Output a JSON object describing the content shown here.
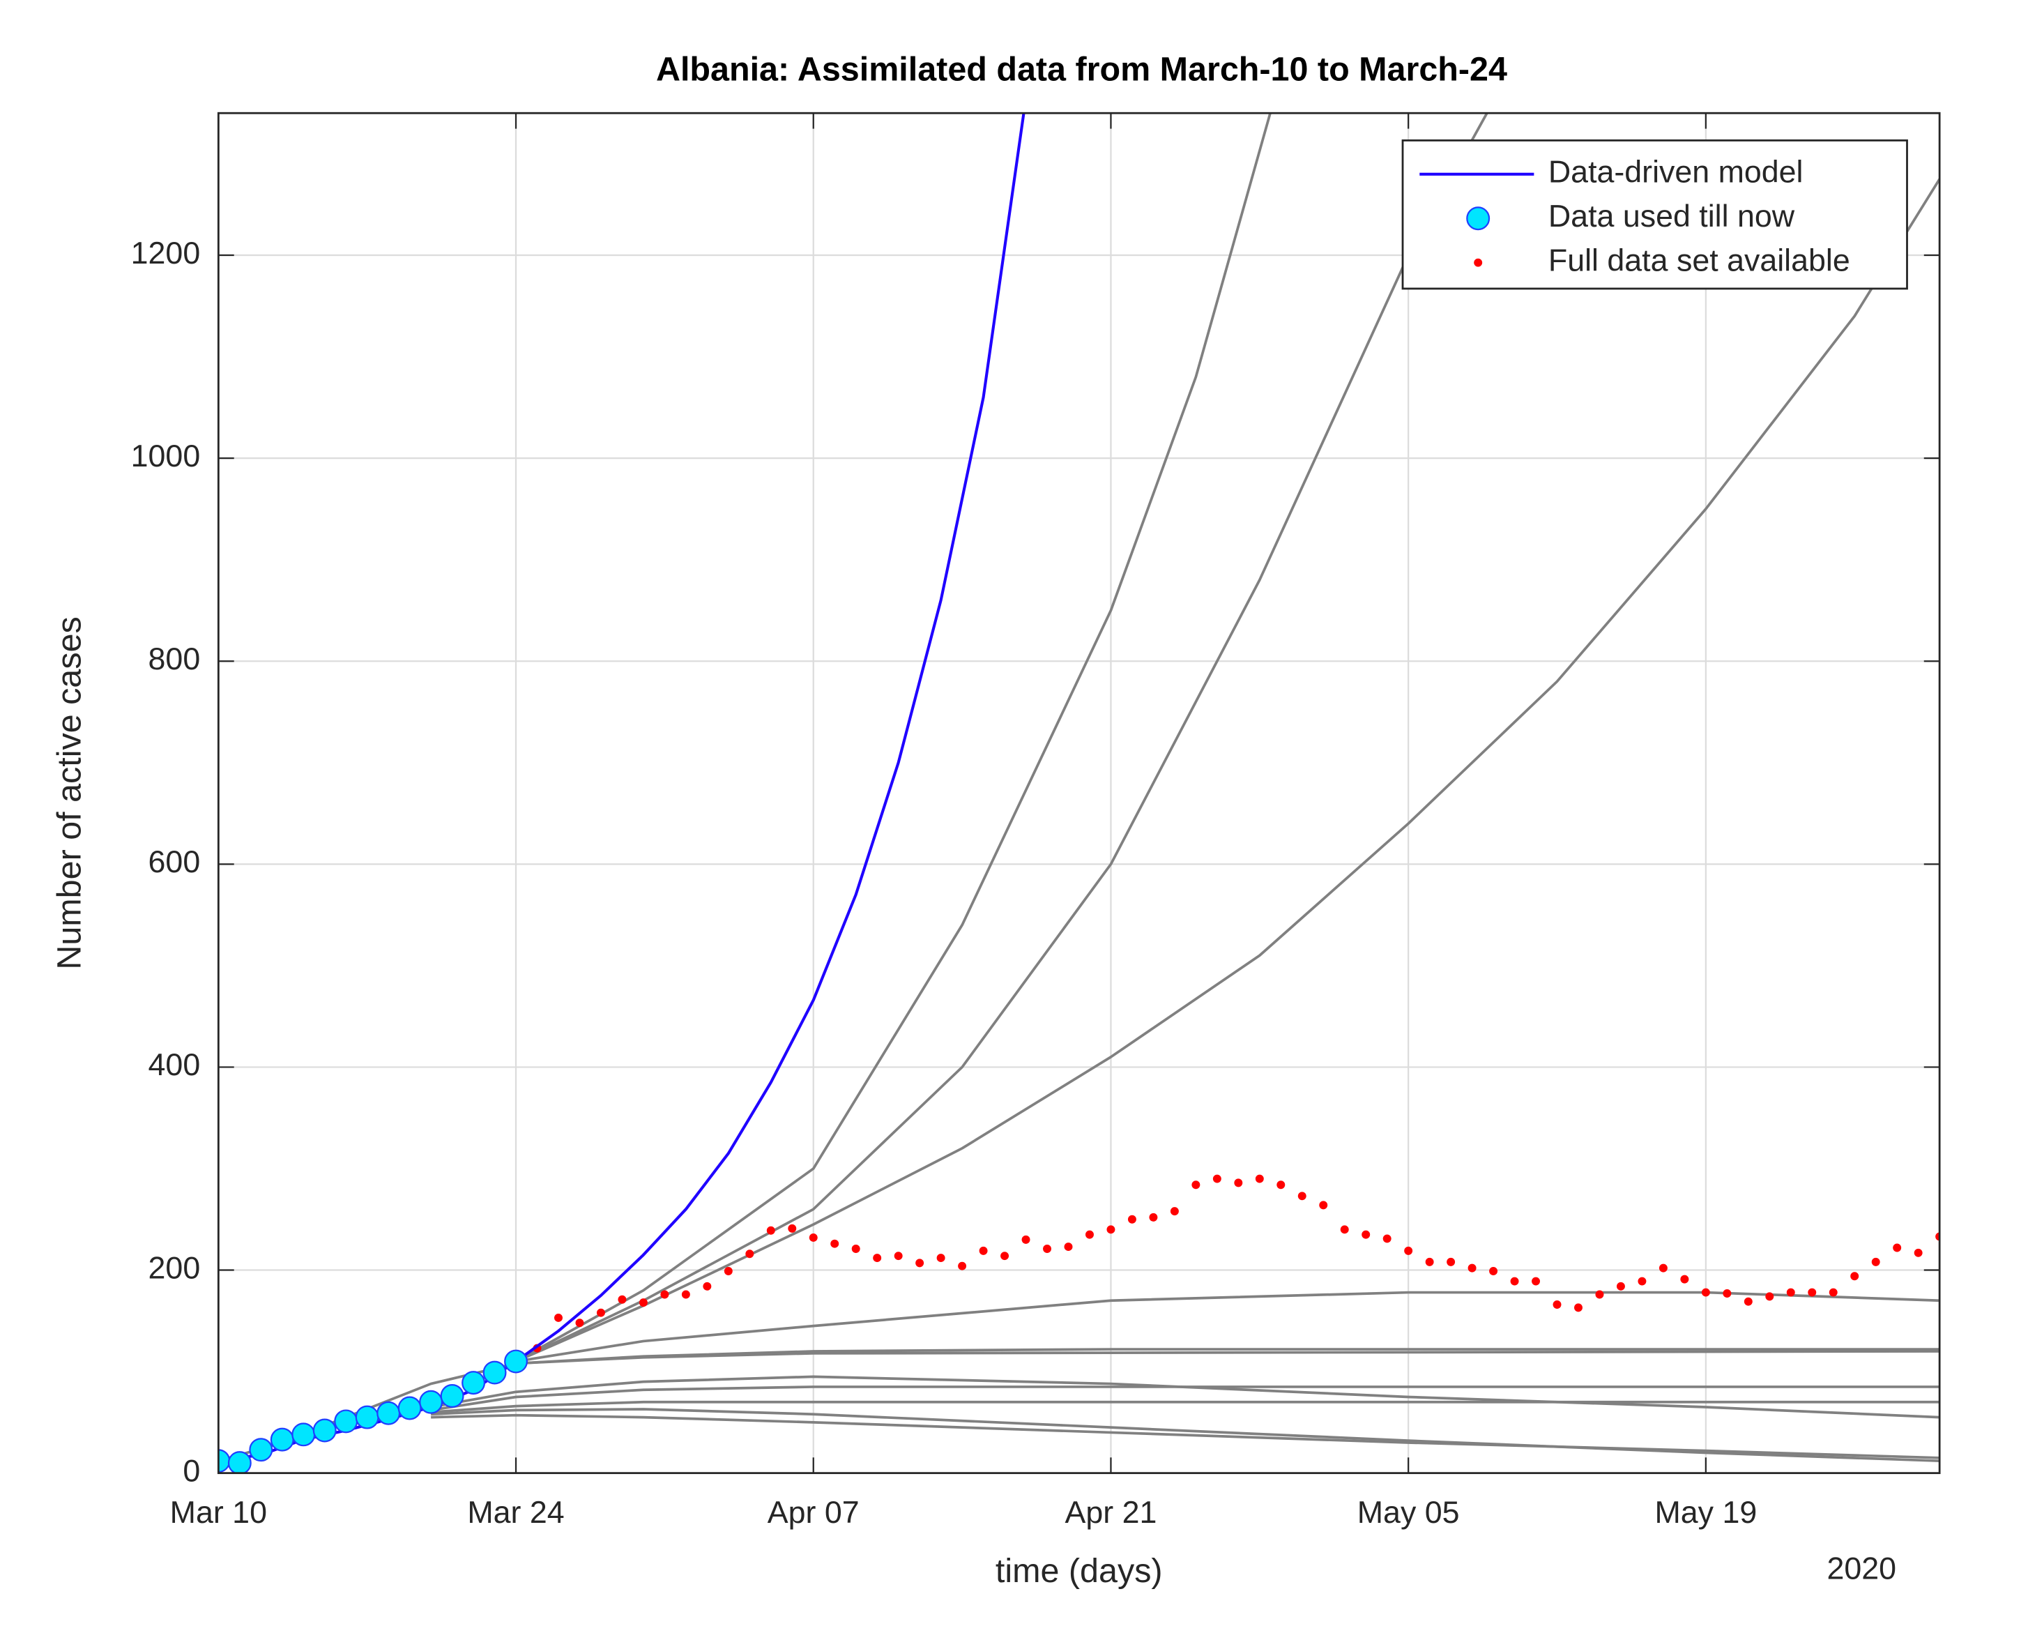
{
  "chart_data": {
    "type": "line",
    "title": "Albania: Assimilated data from March-10 to March-24",
    "x_label": "time (days)",
    "y_label": "Number of active cases",
    "x_year": "2020",
    "xlim": [
      0,
      81
    ],
    "ylim": [
      0,
      1340
    ],
    "xticks": [
      {
        "value": 0,
        "label": "Mar 10"
      },
      {
        "value": 14,
        "label": "Mar 24"
      },
      {
        "value": 28,
        "label": "Apr 07"
      },
      {
        "value": 42,
        "label": "Apr 21"
      },
      {
        "value": 56,
        "label": "May 05"
      },
      {
        "value": 70,
        "label": "May 19"
      }
    ],
    "yticks": [
      0,
      200,
      400,
      600,
      800,
      1000,
      1200
    ],
    "grid": true,
    "legend": "upper right",
    "series": [
      {
        "name": "Data-driven model",
        "color": "#1f00ff",
        "style": "line",
        "x": [
          0,
          2,
          4,
          6,
          8,
          10,
          12,
          14,
          16,
          18,
          20,
          22,
          24,
          26,
          28,
          30,
          32,
          34,
          36,
          37.9
        ],
        "values": [
          12,
          18,
          33,
          42,
          53,
          65,
          82,
          110,
          140,
          175,
          215,
          260,
          315,
          385,
          466,
          570,
          700,
          860,
          1060,
          1340
        ]
      },
      {
        "name": "Data used till now",
        "color": "#00e5ff",
        "style": "circle",
        "x": [
          0,
          1,
          2,
          3,
          4,
          5,
          6,
          7,
          8,
          9,
          10,
          11,
          12,
          13,
          14
        ],
        "values": [
          12,
          10,
          23,
          33,
          38,
          42,
          51,
          55,
          59,
          64,
          70,
          76,
          89,
          99,
          110
        ]
      },
      {
        "name": "Full data set available",
        "color": "#ff0000",
        "style": "dot",
        "x": [
          15,
          16,
          17,
          18,
          19,
          20,
          21,
          22,
          23,
          24,
          25,
          26,
          27,
          28,
          29,
          30,
          31,
          32,
          33,
          34,
          35,
          36,
          37,
          38,
          39,
          40,
          41,
          42,
          43,
          44,
          45,
          46,
          47,
          48,
          49,
          50,
          51,
          52,
          53,
          54,
          55,
          56,
          57,
          58,
          59,
          60,
          61,
          62,
          63,
          64,
          65,
          66,
          67,
          68,
          69,
          70,
          71,
          72,
          73,
          74,
          75,
          76,
          77,
          78,
          79,
          80,
          81
        ],
        "values": [
          123,
          153,
          148,
          158,
          171,
          168,
          176,
          176,
          184,
          199,
          216,
          239,
          241,
          232,
          226,
          221,
          212,
          214,
          207,
          212,
          204,
          219,
          214,
          230,
          221,
          223,
          235,
          240,
          250,
          252,
          258,
          284,
          290,
          286,
          290,
          284,
          273,
          264,
          240,
          235,
          231,
          219,
          208,
          208,
          202,
          199,
          189,
          189,
          166,
          163,
          176,
          184,
          189,
          202,
          191,
          178,
          177,
          169,
          174,
          178,
          178,
          178,
          194,
          208,
          222,
          217,
          233
        ]
      }
    ],
    "ensemble": {
      "color": "#808080",
      "curves": [
        {
          "x": [
            14,
            20,
            28,
            35,
            42,
            46,
            49.5
          ],
          "values": [
            110,
            180,
            300,
            540,
            850,
            1080,
            1340
          ]
        },
        {
          "x": [
            14,
            20,
            28,
            35,
            42,
            49,
            56,
            59.7
          ],
          "values": [
            110,
            170,
            260,
            400,
            600,
            880,
            1200,
            1340
          ]
        },
        {
          "x": [
            14,
            20,
            28,
            35,
            42,
            49,
            56,
            63,
            70,
            77,
            81
          ],
          "values": [
            110,
            165,
            245,
            320,
            410,
            510,
            640,
            780,
            950,
            1140,
            1275
          ]
        },
        {
          "x": [
            14,
            20,
            28,
            42,
            56,
            70,
            81
          ],
          "values": [
            110,
            130,
            145,
            170,
            178,
            178,
            170
          ]
        },
        {
          "x": [
            14,
            20,
            28,
            42,
            81
          ],
          "values": [
            108,
            115,
            120,
            122,
            122
          ]
        },
        {
          "x": [
            0,
            3,
            6,
            10,
            14,
            20,
            28,
            81
          ],
          "values": [
            12,
            30,
            55,
            88,
            108,
            114,
            118,
            120
          ]
        },
        {
          "x": [
            10,
            14,
            20,
            28,
            42,
            56,
            70,
            81
          ],
          "values": [
            65,
            80,
            90,
            95,
            88,
            75,
            65,
            55
          ]
        },
        {
          "x": [
            10,
            14,
            20,
            28,
            42,
            81
          ],
          "values": [
            62,
            75,
            82,
            85,
            85,
            85
          ]
        },
        {
          "x": [
            10,
            14,
            20,
            28,
            42,
            81
          ],
          "values": [
            60,
            66,
            70,
            70,
            70,
            70
          ]
        },
        {
          "x": [
            10,
            14,
            20,
            28,
            42,
            56,
            70,
            81
          ],
          "values": [
            58,
            62,
            63,
            58,
            45,
            32,
            20,
            12
          ]
        },
        {
          "x": [
            10,
            14,
            20,
            28,
            42,
            56,
            70,
            81
          ],
          "values": [
            55,
            57,
            55,
            50,
            40,
            30,
            22,
            15
          ]
        }
      ]
    }
  }
}
